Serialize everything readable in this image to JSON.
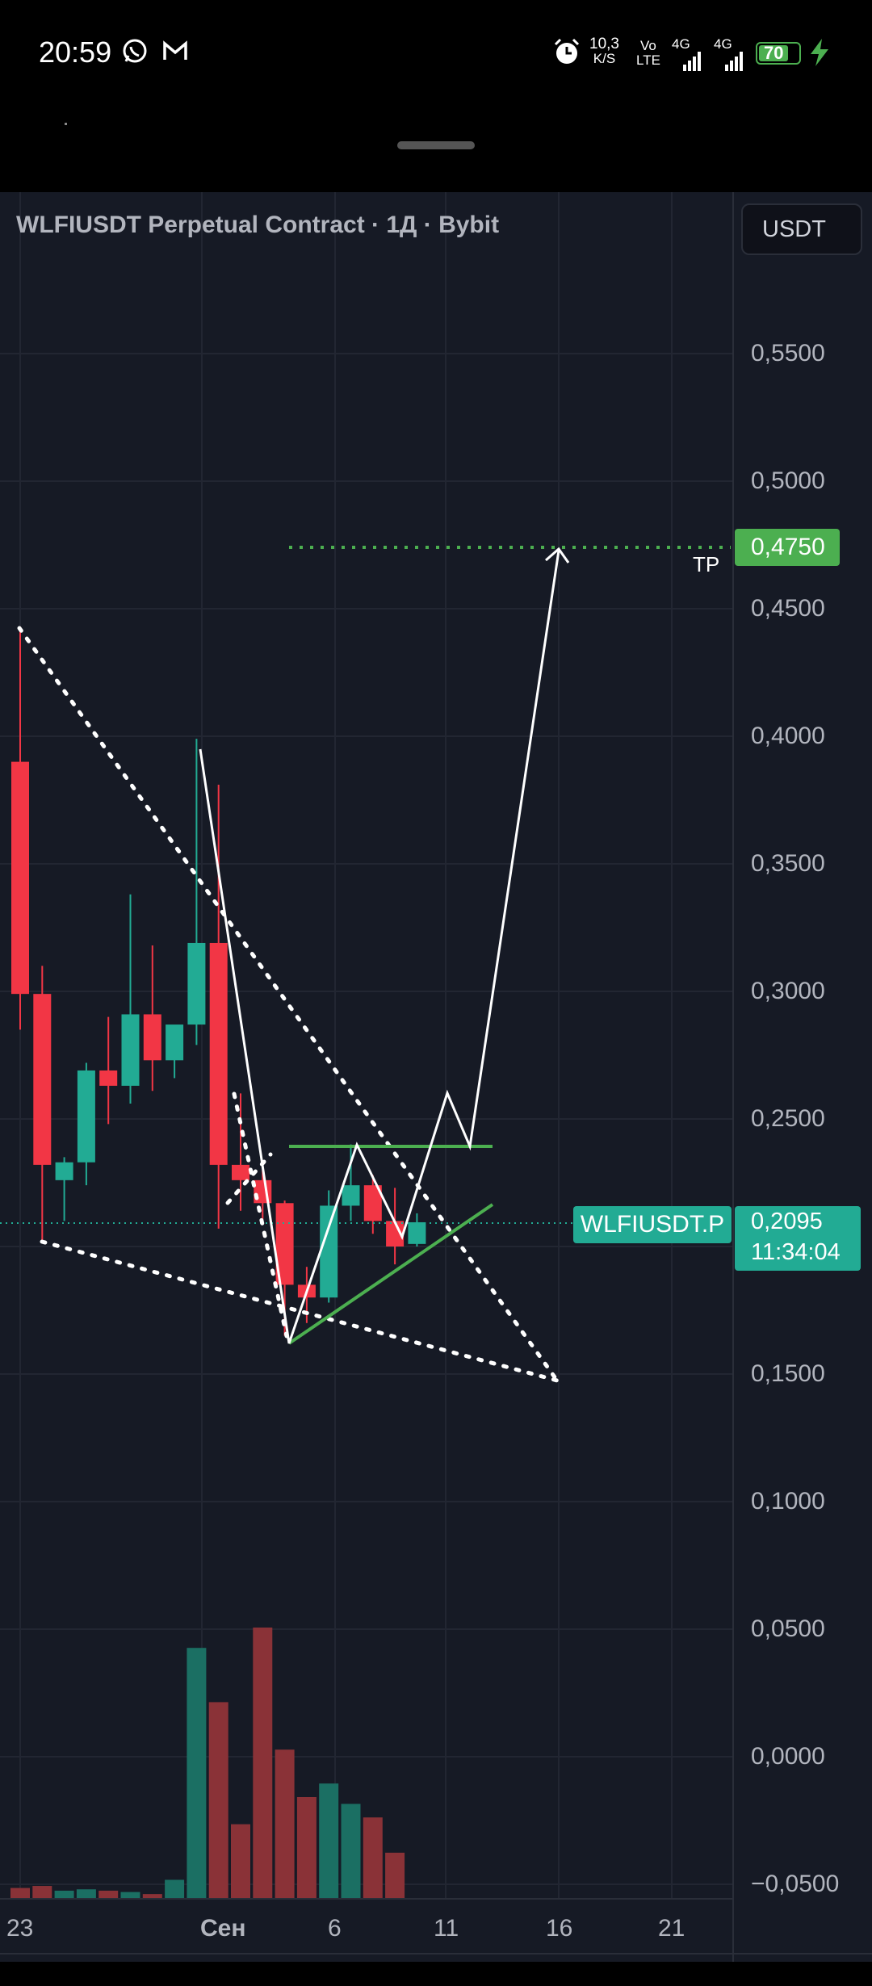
{
  "status_bar": {
    "time": "20:59",
    "net_speed_value": "10,3",
    "net_speed_unit": "K/S",
    "volte_top": "Vo",
    "volte_bottom": "LTE",
    "signal1_label": "4G",
    "signal2_label": "4G",
    "battery": "70",
    "icons": [
      "whatsapp-icon",
      "gmail-icon",
      "alarm-icon",
      "signal-icon",
      "battery-icon",
      "charging-icon"
    ]
  },
  "chart": {
    "title": "WLFIUSDT Perpetual Contract · 1Д · Bybit",
    "currency_button": "USDT",
    "price_axis": [
      "0,5500",
      "0,5000",
      "0,4500",
      "0,4000",
      "0,3500",
      "0,3000",
      "0,2500",
      "0,1500",
      "0,1000",
      "0,0500",
      "0,0000",
      "−0,0500"
    ],
    "date_axis": [
      "23",
      "Сен",
      "6",
      "11",
      "16",
      "21"
    ],
    "tp_price": "0,4750",
    "tp_label": "TP",
    "symbol_badge": "WLFIUSDT.P",
    "current_price": "0,2095",
    "countdown": "11:34:04",
    "colors": {
      "up": "#22ab94",
      "down": "#f23645",
      "target": "#4caf50",
      "background": "#161a25"
    }
  },
  "chart_data": {
    "type": "candlestick",
    "symbol": "WLFIUSDT Perpetual Contract",
    "interval": "1Д",
    "exchange": "Bybit",
    "candles": [
      {
        "o": 0.39,
        "h": 0.443,
        "l": 0.285,
        "c": 0.299,
        "dir": "down"
      },
      {
        "o": 0.299,
        "h": 0.31,
        "l": 0.202,
        "c": 0.232,
        "dir": "down"
      },
      {
        "o": 0.226,
        "h": 0.235,
        "l": 0.21,
        "c": 0.233,
        "dir": "up"
      },
      {
        "o": 0.233,
        "h": 0.272,
        "l": 0.224,
        "c": 0.269,
        "dir": "up"
      },
      {
        "o": 0.269,
        "h": 0.29,
        "l": 0.248,
        "c": 0.263,
        "dir": "down"
      },
      {
        "o": 0.263,
        "h": 0.338,
        "l": 0.256,
        "c": 0.291,
        "dir": "up"
      },
      {
        "o": 0.291,
        "h": 0.318,
        "l": 0.261,
        "c": 0.273,
        "dir": "down"
      },
      {
        "o": 0.273,
        "h": 0.285,
        "l": 0.266,
        "c": 0.287,
        "dir": "up"
      },
      {
        "o": 0.287,
        "h": 0.399,
        "l": 0.279,
        "c": 0.319,
        "dir": "up"
      },
      {
        "o": 0.319,
        "h": 0.381,
        "l": 0.207,
        "c": 0.232,
        "dir": "down"
      },
      {
        "o": 0.232,
        "h": 0.26,
        "l": 0.214,
        "c": 0.226,
        "dir": "down"
      },
      {
        "o": 0.226,
        "h": 0.23,
        "l": 0.21,
        "c": 0.217,
        "dir": "down"
      },
      {
        "o": 0.217,
        "h": 0.218,
        "l": 0.165,
        "c": 0.185,
        "dir": "down"
      },
      {
        "o": 0.185,
        "h": 0.192,
        "l": 0.17,
        "c": 0.18,
        "dir": "down"
      },
      {
        "o": 0.18,
        "h": 0.222,
        "l": 0.178,
        "c": 0.216,
        "dir": "up"
      },
      {
        "o": 0.216,
        "h": 0.24,
        "l": 0.21,
        "c": 0.224,
        "dir": "up"
      },
      {
        "o": 0.224,
        "h": 0.228,
        "l": 0.205,
        "c": 0.21,
        "dir": "down"
      },
      {
        "o": 0.21,
        "h": 0.223,
        "l": 0.193,
        "c": 0.2,
        "dir": "down"
      },
      {
        "o": 0.201,
        "h": 0.213,
        "l": 0.2,
        "c": 0.2095,
        "dir": "up"
      }
    ],
    "volume_bars": [
      0.16,
      0.19,
      0.12,
      0.14,
      0.12,
      0.1,
      0.07,
      0.28,
      3.7,
      2.9,
      1.1,
      4.0,
      2.2,
      1.5,
      1.7,
      1.4,
      1.2,
      0.68,
      0
    ],
    "price_range": [
      -0.055,
      0.585
    ],
    "annotations": {
      "take_profit": 0.475,
      "resistance_line": 0.2395,
      "current_price": 0.2095
    }
  }
}
